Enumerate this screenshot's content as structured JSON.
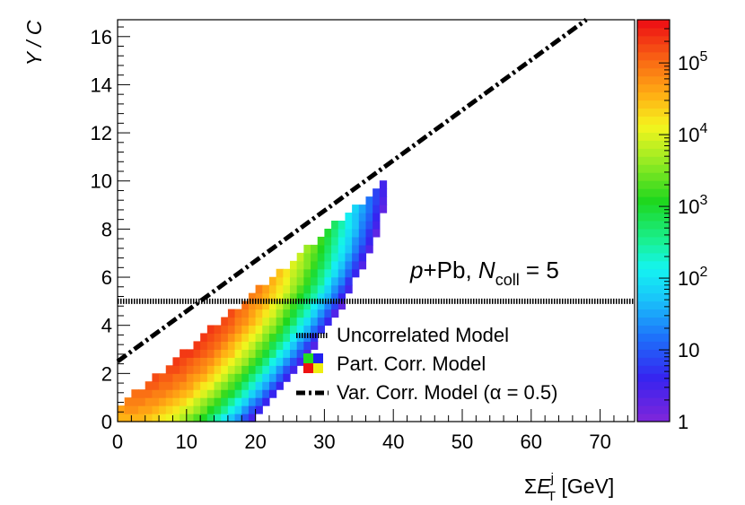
{
  "chart_data": {
    "type": "heatmap",
    "title": "",
    "xlabel": "ΣE_T^j [GeV]",
    "xlabel_parts": {
      "sigma": "Σ",
      "var": "E",
      "sup": "j",
      "sub": "T",
      "unit": "[GeV]"
    },
    "ylabel": "Y / C",
    "xlim": [
      0,
      75
    ],
    "ylim": [
      0,
      16.7
    ],
    "x_ticks": [
      0,
      10,
      20,
      30,
      40,
      50,
      60,
      70
    ],
    "x_tick_labels": [
      "0",
      "10",
      "20",
      "30",
      "40",
      "50",
      "60",
      "70"
    ],
    "y_ticks": [
      0,
      2,
      4,
      6,
      8,
      10,
      12,
      14,
      16
    ],
    "y_tick_labels": [
      "0",
      "2",
      "4",
      "6",
      "8",
      "10",
      "12",
      "14",
      "16"
    ],
    "z_scale": "log",
    "zlim": [
      1,
      400000
    ],
    "colorbar_ticks": [
      1,
      10,
      100,
      1000,
      10000,
      100000
    ],
    "colorbar_labels": {
      "base": [
        "1",
        "10",
        "10",
        "10",
        "10",
        "10"
      ],
      "exp": [
        "",
        "",
        "2",
        "3",
        "4",
        "5"
      ]
    },
    "density_model": {
      "domain_condition": "y <= 0.241 * x + 0.6",
      "peak_x": 11,
      "peak_y": 4.5,
      "peak_log_z": 5.55,
      "ridge_slope": 0.24,
      "sigma_along_x": 14,
      "sigma_perp": 2.2
    },
    "lines": [
      {
        "name": "Uncorrelated Model",
        "type": "horizontal",
        "y": 5.0,
        "style": "dotted"
      },
      {
        "name": "Var. Corr. Model (α = 0.5)",
        "type": "segment",
        "x": [
          0,
          68
        ],
        "y": [
          2.5,
          16.7
        ],
        "style": "dash-dot"
      }
    ],
    "legend": {
      "placement": "bottom-right",
      "entries": [
        "Uncorrelated Model",
        "Part. Corr. Model",
        "Var. Corr. Model (α = 0.5)"
      ],
      "part_corr_colors": [
        "#22dd22",
        "#2222ee",
        "#ee1111",
        "#eeee11"
      ]
    },
    "annotation": {
      "text_prefix": "p",
      "text_mid": "+Pb, ",
      "text_var": "N",
      "text_sub": "coll",
      "text_suffix": " = 5"
    }
  }
}
